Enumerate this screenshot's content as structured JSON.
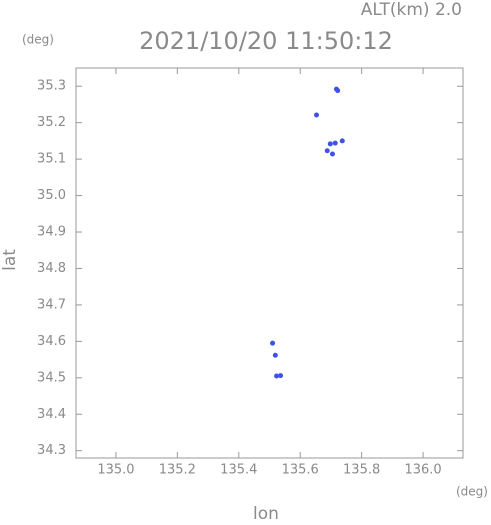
{
  "chart_data": {
    "type": "scatter",
    "title": "2021/10/20 11:50:12",
    "subtitle": "ALT(km) 2.0",
    "y_unit": "(deg)",
    "x_unit": "(deg)",
    "xlabel": "lon",
    "ylabel": "lat",
    "color": "#3d52e6",
    "x": [
      135.718,
      135.722,
      135.653,
      135.714,
      135.737,
      135.698,
      135.688,
      135.705,
      135.51,
      135.519,
      135.523,
      135.536
    ],
    "values": [
      35.292,
      35.288,
      35.221,
      35.144,
      35.15,
      35.142,
      35.123,
      35.114,
      34.595,
      34.562,
      34.505,
      34.506
    ],
    "xlim": [
      134.87,
      136.13
    ],
    "ylim": [
      34.28,
      35.35
    ],
    "xticks": [
      {
        "value": 135,
        "label": "135.0"
      },
      135.2,
      135.4,
      135.6,
      135.8,
      {
        "value": 136,
        "label": "136.0"
      }
    ],
    "yticks": [
      34.3,
      34.4,
      34.5,
      34.6,
      34.7,
      34.8,
      34.9,
      {
        "value": 35,
        "label": "35.0"
      },
      35.1,
      35.2,
      35.3
    ]
  }
}
